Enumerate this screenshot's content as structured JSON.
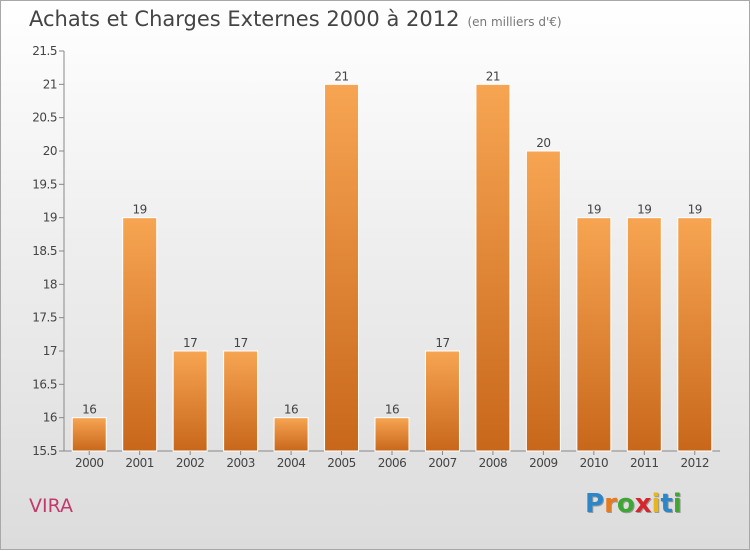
{
  "header": {
    "title": "Achats et Charges Externes 2000 à 2012",
    "unit": "(en milliers d'€)"
  },
  "footer": {
    "commune": "VIRA",
    "logo": "Proxiti",
    "logo_colors": [
      "#2c86c8",
      "#e8791d",
      "#3fa535",
      "#d6262d",
      "#e8b51d",
      "#2c86c8",
      "#3fa535"
    ]
  },
  "chart_data": {
    "type": "bar",
    "title": "Achats et Charges Externes 2000 à 2012",
    "subtitle": "(en milliers d'€)",
    "categories": [
      "2000",
      "2001",
      "2002",
      "2003",
      "2004",
      "2005",
      "2006",
      "2007",
      "2008",
      "2009",
      "2010",
      "2011",
      "2012"
    ],
    "values": [
      16,
      19,
      17,
      17,
      16,
      21,
      16,
      17,
      21,
      20,
      19,
      19,
      19
    ],
    "ylim": [
      15.5,
      21.5
    ],
    "yticks": [
      "15.5",
      "16",
      "16.5",
      "17",
      "17.5",
      "18",
      "18.5",
      "19",
      "19.5",
      "20",
      "20.5",
      "21",
      "21.5"
    ],
    "xlabel": "",
    "ylabel": "",
    "grid": false,
    "bar_color_top": "#f7a552",
    "bar_color_bottom": "#c8671a"
  }
}
